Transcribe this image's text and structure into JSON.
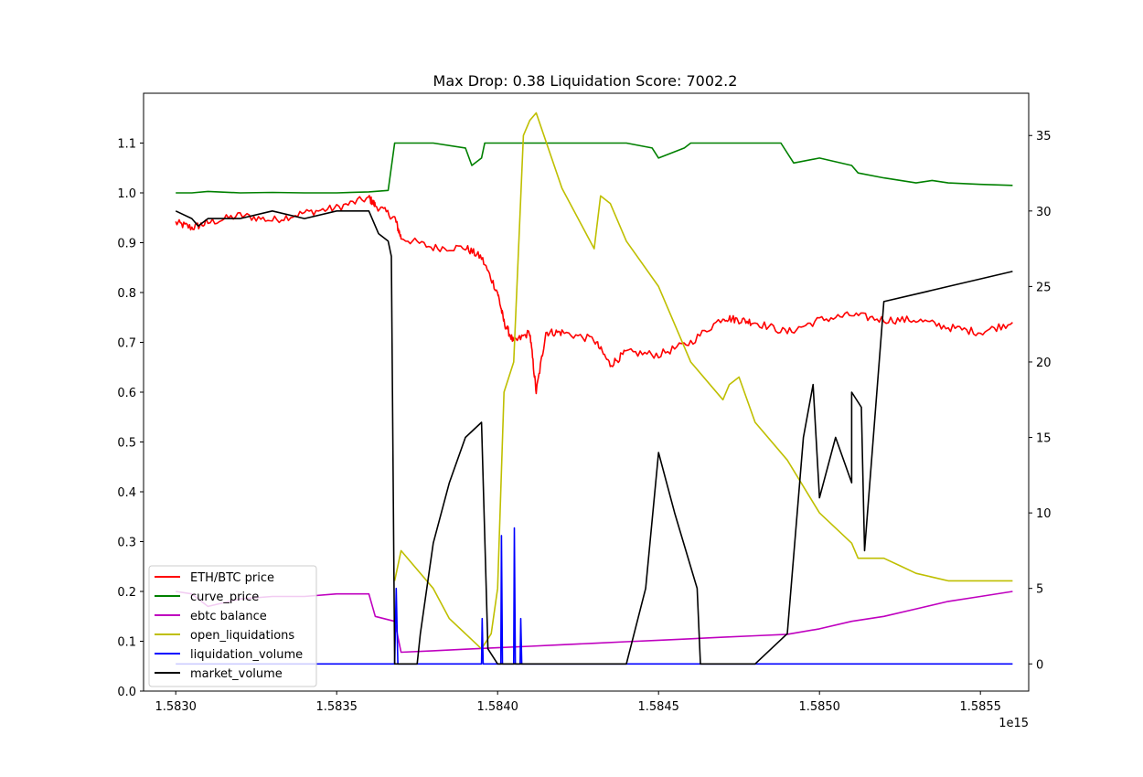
{
  "chart_data": {
    "type": "line",
    "title": "Max Drop: 0.38 Liquidation Score: 7002.2",
    "x_offset_label": "1e15",
    "xlim": [
      1.5829,
      1.58565
    ],
    "ylim_left": [
      0.0,
      1.2
    ],
    "ylim_right": [
      -1.8,
      37.8
    ],
    "x_ticks": [
      1.583,
      1.5835,
      1.584,
      1.5845,
      1.585,
      1.5855
    ],
    "x_tick_labels": [
      "1.5830",
      "1.5835",
      "1.5840",
      "1.5845",
      "1.5850",
      "1.5855"
    ],
    "y_left_ticks": [
      0.0,
      0.1,
      0.2,
      0.3,
      0.4,
      0.5,
      0.6,
      0.7,
      0.8,
      0.9,
      1.0,
      1.1
    ],
    "y_left_tick_labels": [
      "0.0",
      "0.1",
      "0.2",
      "0.3",
      "0.4",
      "0.5",
      "0.6",
      "0.7",
      "0.8",
      "0.9",
      "1.0",
      "1.1"
    ],
    "y_right_ticks": [
      0,
      5,
      10,
      15,
      20,
      25,
      30,
      35
    ],
    "y_right_tick_labels": [
      "0",
      "5",
      "10",
      "15",
      "20",
      "25",
      "30",
      "35"
    ],
    "legend_position": "lower-left",
    "series": [
      {
        "name": "ETH/BTC price",
        "color": "#ff0000",
        "axis": "left",
        "noise": 0.008,
        "x": [
          1.583,
          1.58305,
          1.5831,
          1.5832,
          1.5833,
          1.5834,
          1.5835,
          1.5836,
          1.58362,
          1.58368,
          1.5837,
          1.5838,
          1.5839,
          1.58395,
          1.584,
          1.58402,
          1.58405,
          1.5841,
          1.58412,
          1.58415,
          1.5842,
          1.5843,
          1.58435,
          1.5844,
          1.5845,
          1.5846,
          1.5847,
          1.58475,
          1.5848,
          1.5849,
          1.585,
          1.5851,
          1.5852,
          1.5853,
          1.5854,
          1.5855,
          1.5856
        ],
        "y": [
          0.94,
          0.93,
          0.94,
          0.955,
          0.945,
          0.96,
          0.97,
          0.99,
          0.975,
          0.95,
          0.91,
          0.89,
          0.89,
          0.87,
          0.8,
          0.74,
          0.7,
          0.72,
          0.6,
          0.72,
          0.72,
          0.705,
          0.655,
          0.68,
          0.675,
          0.7,
          0.75,
          0.745,
          0.74,
          0.72,
          0.745,
          0.755,
          0.745,
          0.745,
          0.73,
          0.72,
          0.74
        ]
      },
      {
        "name": "curve_price",
        "color": "#008000",
        "axis": "left",
        "noise": 0.0,
        "x": [
          1.583,
          1.58305,
          1.5831,
          1.5832,
          1.5833,
          1.5834,
          1.5835,
          1.5836,
          1.58366,
          1.58368,
          1.5838,
          1.5839,
          1.58392,
          1.58395,
          1.58396,
          1.5841,
          1.5843,
          1.5844,
          1.58448,
          1.5845,
          1.58458,
          1.5846,
          1.5848,
          1.58488,
          1.58492,
          1.585,
          1.5851,
          1.58512,
          1.5852,
          1.5853,
          1.58535,
          1.5854,
          1.5855,
          1.5856
        ],
        "y": [
          1.0,
          1.0,
          1.003,
          1.0,
          1.001,
          1.0,
          1.0,
          1.002,
          1.005,
          1.1,
          1.1,
          1.09,
          1.055,
          1.07,
          1.1,
          1.1,
          1.1,
          1.1,
          1.09,
          1.07,
          1.09,
          1.1,
          1.1,
          1.1,
          1.06,
          1.07,
          1.055,
          1.04,
          1.03,
          1.02,
          1.025,
          1.02,
          1.017,
          1.015
        ]
      },
      {
        "name": "ebtc balance",
        "color": "#bf00bf",
        "axis": "left",
        "noise": 0.0,
        "x": [
          1.583,
          1.58305,
          1.5831,
          1.5832,
          1.5833,
          1.5834,
          1.5835,
          1.5836,
          1.58362,
          1.58368,
          1.5837,
          1.5838,
          1.5839,
          1.584,
          1.5841,
          1.5842,
          1.5843,
          1.5844,
          1.5845,
          1.5846,
          1.5847,
          1.5848,
          1.5849,
          1.585,
          1.5851,
          1.5852,
          1.5853,
          1.5854,
          1.5855,
          1.5856
        ],
        "y": [
          0.2,
          0.195,
          0.17,
          0.185,
          0.19,
          0.19,
          0.195,
          0.195,
          0.15,
          0.14,
          0.078,
          0.081,
          0.084,
          0.087,
          0.09,
          0.093,
          0.096,
          0.099,
          0.102,
          0.105,
          0.108,
          0.111,
          0.114,
          0.125,
          0.14,
          0.15,
          0.165,
          0.18,
          0.19,
          0.2
        ]
      },
      {
        "name": "open_liquidations",
        "color": "#bfbf00",
        "axis": "right",
        "noise": 0.0,
        "x": [
          1.58368,
          1.5837,
          1.5838,
          1.58385,
          1.58395,
          1.58398,
          1.584,
          1.58402,
          1.58405,
          1.58408,
          1.5841,
          1.58412,
          1.5842,
          1.5843,
          1.58432,
          1.58435,
          1.5844,
          1.5845,
          1.5846,
          1.5847,
          1.58472,
          1.58475,
          1.5848,
          1.5849,
          1.585,
          1.5851,
          1.58512,
          1.5852,
          1.58525,
          1.5853,
          1.5854,
          1.5855,
          1.5856
        ],
        "y": [
          5.5,
          7.5,
          5.0,
          3.0,
          1.0,
          2.0,
          5.0,
          18.0,
          20.0,
          35.0,
          36.0,
          36.5,
          31.5,
          27.5,
          31.0,
          30.5,
          28.0,
          25.0,
          20.0,
          17.5,
          18.5,
          19.0,
          16.0,
          13.5,
          10.0,
          8.0,
          7.0,
          7.0,
          6.5,
          6.0,
          5.5,
          5.5,
          5.5
        ]
      },
      {
        "name": "liquidation_volume",
        "color": "#0000ff",
        "axis": "right",
        "noise": 0.0,
        "x": [
          1.583,
          1.58368,
          1.583685,
          1.58369,
          1.58395,
          1.583952,
          1.583955,
          1.58401,
          1.584012,
          1.584015,
          1.58405,
          1.584052,
          1.584055,
          1.58407,
          1.584072,
          1.584075,
          1.5856
        ],
        "y": [
          0.0,
          0.0,
          5.0,
          0.0,
          0.0,
          3.0,
          0.0,
          0.0,
          8.5,
          0.0,
          0.0,
          9.0,
          0.0,
          0.0,
          3.0,
          0.0,
          0.0
        ]
      },
      {
        "name": "market_volume",
        "color": "#000000",
        "axis": "right",
        "noise": 0.0,
        "x": [
          1.583,
          1.58305,
          1.58307,
          1.5831,
          1.5832,
          1.5833,
          1.5834,
          1.5835,
          1.5836,
          1.58363,
          1.58366,
          1.58367,
          1.58368,
          1.58375,
          1.58376,
          1.5838,
          1.58385,
          1.5839,
          1.58395,
          1.58397,
          1.584,
          1.5844,
          1.58446,
          1.5845,
          1.58455,
          1.58462,
          1.58463,
          1.5848,
          1.5849,
          1.58495,
          1.58498,
          1.585,
          1.58505,
          1.5851,
          1.5851,
          1.58513,
          1.58514,
          1.5852,
          1.5853,
          1.5854,
          1.5855,
          1.5856
        ],
        "y": [
          30.0,
          29.5,
          29.0,
          29.5,
          29.5,
          30.0,
          29.5,
          30.0,
          30.0,
          28.5,
          28.0,
          27.0,
          0.0,
          0.0,
          2.0,
          8.0,
          12.0,
          15.0,
          16.0,
          1.0,
          0.0,
          0.0,
          5.0,
          14.0,
          10.0,
          5.0,
          0.0,
          0.0,
          2.0,
          15.0,
          18.5,
          11.0,
          15.0,
          12.0,
          18.0,
          17.0,
          7.5,
          24.0,
          24.5,
          25.0,
          25.5,
          26.0
        ]
      }
    ]
  }
}
